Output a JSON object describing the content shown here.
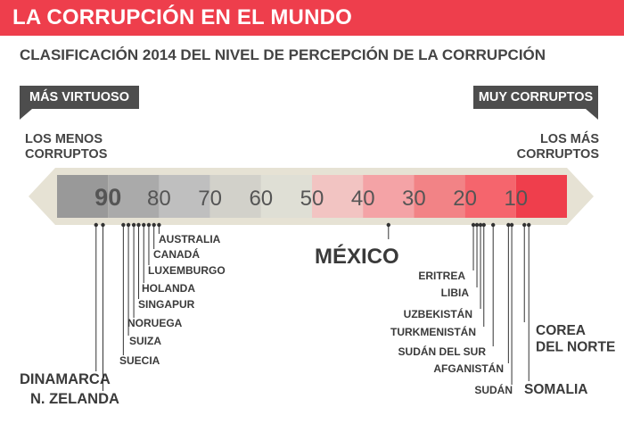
{
  "banner": {
    "title": "LA CORRUPCIÓN EN EL MUNDO"
  },
  "subtitle": "CLASIFICACIÓN 2014 DEL NIVEL DE PERCEPCIÓN DE LA CORRUPCIÓN",
  "labels": {
    "left_tag": "MÁS VIRTUOSO",
    "right_tag": "MUY CORRUPTOS",
    "left_end": [
      "LOS MENOS",
      "CORRUPTOS"
    ],
    "right_end": [
      "LOS MÁS",
      "CORRUPTOS"
    ]
  },
  "colors": {
    "accent": "#ee3e4c",
    "label_gray": "#4d4d4d",
    "light_gray_label": "#aaaaaa",
    "red_label": "#ee3e4c"
  },
  "chart_data": {
    "type": "scale",
    "title": "LA CORRUPCIÓN EN EL MUNDO",
    "subtitle": "CLASIFICACIÓN 2014 DEL NIVEL DE PERCEPCIÓN DE LA CORRUPCIÓN",
    "ticks": [
      {
        "label": "90",
        "value": 90,
        "bold": true
      },
      {
        "label": "80",
        "value": 80
      },
      {
        "label": "70",
        "value": 70
      },
      {
        "label": "60",
        "value": 60
      },
      {
        "label": "50",
        "value": 50
      },
      {
        "label": "40",
        "value": 40
      },
      {
        "label": "30",
        "value": 30
      },
      {
        "label": "20",
        "value": 20
      },
      {
        "label": "10",
        "value": 10
      }
    ],
    "bands": [
      {
        "from": 100,
        "to": 90,
        "color": "#999999"
      },
      {
        "from": 90,
        "to": 80,
        "color": "#aaaaaa"
      },
      {
        "from": 80,
        "to": 70,
        "color": "#bfbfbf"
      },
      {
        "from": 70,
        "to": 60,
        "color": "#d2d1ca"
      },
      {
        "from": 60,
        "to": 50,
        "color": "#dfdfd5"
      },
      {
        "from": 50,
        "to": 40,
        "color": "#f2c4c2"
      },
      {
        "from": 40,
        "to": 30,
        "color": "#f4a3a6"
      },
      {
        "from": 30,
        "to": 20,
        "color": "#f28386"
      },
      {
        "from": 20,
        "to": 10,
        "color": "#f5656d"
      },
      {
        "from": 10,
        "to": 0,
        "color": "#ef3e4c"
      }
    ],
    "countries": [
      {
        "name": "DINAMARCA",
        "score": 92,
        "color": "#aaaaaa",
        "size": "large"
      },
      {
        "name": "N. ZELANDA",
        "score": 91,
        "color": "#aaaaaa",
        "size": "large"
      },
      {
        "name": "SUECIA",
        "score": 87
      },
      {
        "name": "SUIZA",
        "score": 86
      },
      {
        "name": "NORUEGA",
        "score": 86
      },
      {
        "name": "SINGAPUR",
        "score": 84
      },
      {
        "name": "HOLANDA",
        "score": 83
      },
      {
        "name": "LUXEMBURGO",
        "score": 82
      },
      {
        "name": "CANADÁ",
        "score": 81
      },
      {
        "name": "AUSTRALIA",
        "score": 80
      },
      {
        "name": "MÉXICO",
        "score": 35,
        "size": "xlarge"
      },
      {
        "name": "ERITREA",
        "score": 18
      },
      {
        "name": "LIBIA",
        "score": 18
      },
      {
        "name": "UZBEKISTÁN",
        "score": 18
      },
      {
        "name": "TURKMENISTÁN",
        "score": 17
      },
      {
        "name": "SUDÁN DEL SUR",
        "score": 15
      },
      {
        "name": "AFGANISTÁN",
        "score": 12
      },
      {
        "name": "SUDÁN",
        "score": 11
      },
      {
        "name": "COREA DEL NORTE",
        "score": 8,
        "color": "#ee3e4c",
        "size": "large"
      },
      {
        "name": "SOMALIA",
        "score": 8,
        "color": "#ee3e4c",
        "size": "large"
      }
    ]
  }
}
